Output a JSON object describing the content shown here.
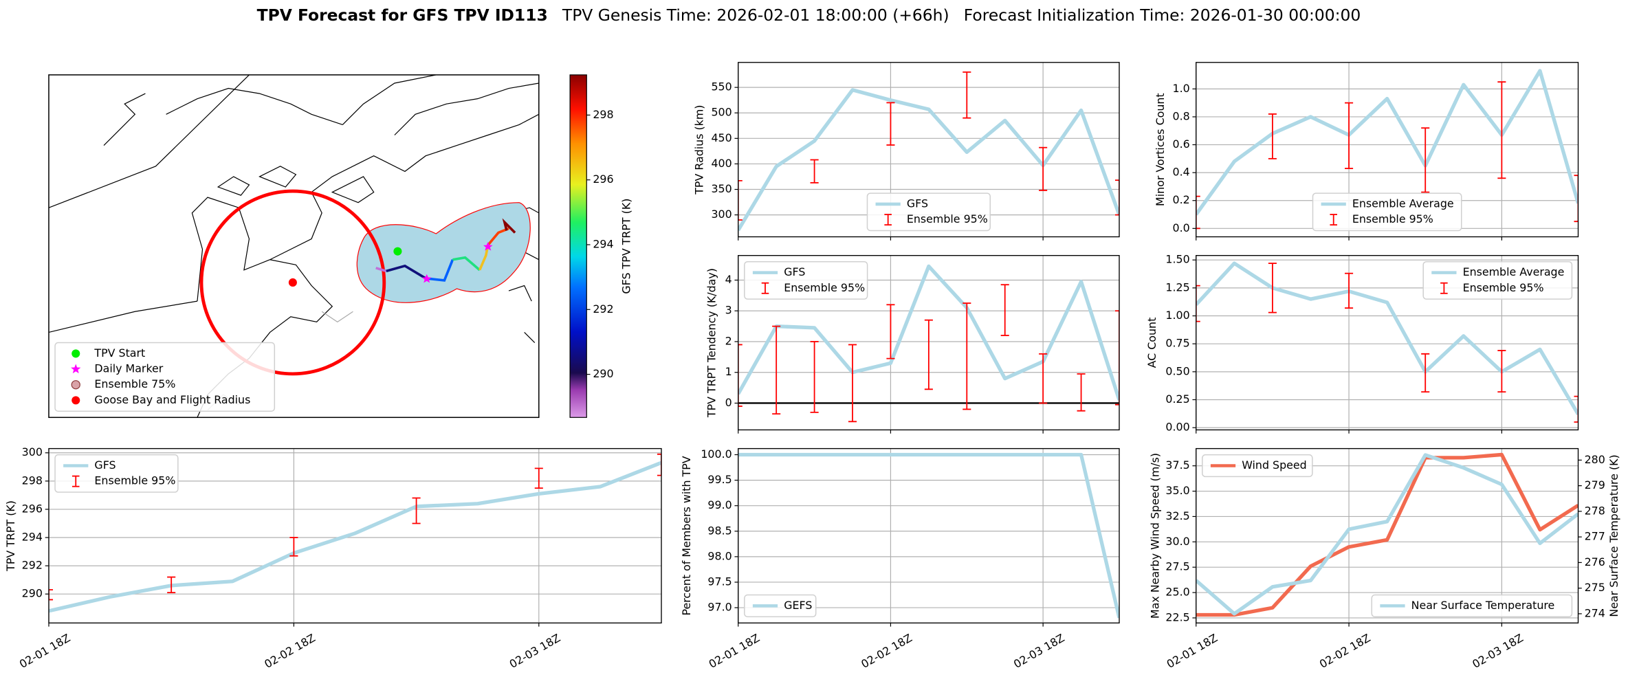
{
  "figure": {
    "title": "TPV Forecast for GFS TPV ID113",
    "genesis": "TPV Genesis Time: 2026-02-01 18:00:00 (+66h)",
    "init": "Forecast Initialization Time: 2026-01-30 00:00:00"
  },
  "chart_data": [
    {
      "type": "map",
      "legend": "lower left",
      "series": [
        {
          "name": "TPV Start",
          "color": "#00ee00",
          "marker": "circle"
        },
        {
          "name": "Daily Marker",
          "color": "#ff00ff",
          "marker": "star"
        },
        {
          "name": "Ensemble 75%",
          "color": "#d9a3a8",
          "marker": "circle"
        },
        {
          "name": "Goose Bay and Flight Radius",
          "color": "#ff0000",
          "marker": "circle"
        }
      ],
      "colorbar": {
        "label": "GFS TPV TRPT (K)",
        "lim": [
          288.67,
          299.24
        ],
        "ticks": [
          290,
          292,
          294,
          296,
          298
        ]
      }
    },
    {
      "type": "line",
      "ylabel": "TPV Radius (km)",
      "sharex": 6,
      "ylim": [
        257,
        599
      ],
      "yticks": [
        300,
        350,
        400,
        450,
        500,
        550
      ],
      "grid": true,
      "legend": "lower center",
      "series": [
        {
          "name": "GFS",
          "color": "#add8e6",
          "values": [
            270,
            395,
            445,
            545,
            525,
            507,
            423,
            485,
            397,
            505,
            300
          ]
        },
        {
          "name": "Ensemble 95%",
          "color": "#ff0000",
          "lower": [
            290,
            null,
            363,
            null,
            437,
            null,
            490,
            null,
            348,
            null,
            300
          ],
          "upper": [
            367,
            null,
            408,
            null,
            520,
            null,
            580,
            null,
            432,
            null,
            368
          ]
        }
      ]
    },
    {
      "type": "line",
      "ylabel": "Minor Vortices Count",
      "sharex": 7,
      "ylim": [
        -0.06,
        1.19
      ],
      "yticks": [
        {
          "value": 0,
          "label": "0.0"
        },
        0.2,
        0.4,
        0.6,
        0.8,
        {
          "value": 1,
          "label": "1.0"
        }
      ],
      "grid": true,
      "legend": "lower center",
      "series": [
        {
          "name": "Ensemble Average",
          "color": "#add8e6",
          "values": [
            0.1,
            0.48,
            0.68,
            0.8,
            0.67,
            0.93,
            0.45,
            1.03,
            0.67,
            1.13,
            0.18
          ]
        },
        {
          "name": "Ensemble 95%",
          "color": "#ff0000",
          "lower": [
            0,
            null,
            0.5,
            null,
            0.43,
            null,
            0.26,
            null,
            0.36,
            null,
            0.05
          ],
          "upper": [
            0.23,
            null,
            0.82,
            null,
            0.9,
            null,
            0.72,
            null,
            1.05,
            null,
            0.38
          ]
        }
      ]
    },
    {
      "type": "line",
      "ylabel": "TPV TRPT Tendency (K/day)",
      "sharex": 6,
      "ylim": [
        -0.87,
        4.8
      ],
      "yticks": [
        0,
        1,
        2,
        3,
        4
      ],
      "grid": true,
      "legend": "upper left",
      "hline": 0,
      "series": [
        {
          "name": "GFS",
          "color": "#add8e6",
          "values": [
            0.3,
            2.5,
            2.45,
            1.0,
            1.3,
            4.45,
            3.1,
            0.8,
            1.35,
            3.95,
            0.1
          ]
        },
        {
          "name": "Ensemble 95%",
          "color": "#ff0000",
          "lower": [
            -0.1,
            -0.35,
            -0.3,
            -0.6,
            1.45,
            0.45,
            -0.2,
            2.2,
            0,
            -0.25,
            -0.05
          ],
          "upper": [
            1.9,
            2.5,
            2.0,
            1.9,
            3.2,
            2.7,
            3.25,
            3.85,
            1.6,
            0.95,
            3.0
          ]
        }
      ]
    },
    {
      "type": "line",
      "ylabel": "AC Count",
      "sharex": 7,
      "ylim": [
        -0.02,
        1.54
      ],
      "yticks": [
        {
          "value": 0,
          "label": "0.00"
        },
        {
          "value": 0.25,
          "label": "0.25"
        },
        {
          "value": 0.5,
          "label": "0.50"
        },
        {
          "value": 0.75,
          "label": "0.75"
        },
        {
          "value": 1,
          "label": "1.00"
        },
        {
          "value": 1.25,
          "label": "1.25"
        },
        {
          "value": 1.5,
          "label": "1.50"
        }
      ],
      "grid": true,
      "legend": "upper right",
      "series": [
        {
          "name": "Ensemble Average",
          "color": "#add8e6",
          "values": [
            1.1,
            1.47,
            1.25,
            1.15,
            1.22,
            1.12,
            0.5,
            0.82,
            0.5,
            0.7,
            0.12
          ]
        },
        {
          "name": "Ensemble 95%",
          "color": "#ff0000",
          "lower": [
            0.95,
            null,
            1.03,
            null,
            1.07,
            null,
            0.32,
            null,
            0.32,
            null,
            0.05
          ],
          "upper": [
            1.27,
            null,
            1.47,
            null,
            1.38,
            null,
            0.66,
            null,
            0.69,
            null,
            0.28
          ]
        }
      ]
    },
    {
      "type": "line",
      "ylabel": "TPV TRPT (K)",
      "x": [
        "02-01 18Z",
        "02-02 00Z",
        "02-02 06Z",
        "02-02 12Z",
        "02-02 18Z",
        "02-03 00Z",
        "02-03 06Z",
        "02-03 12Z",
        "02-03 18Z",
        "02-04 00Z",
        "02-04 06Z"
      ],
      "xticks": [
        "02-01 18Z",
        "02-02 18Z",
        "02-03 18Z"
      ],
      "ylim": [
        287.95,
        300.3
      ],
      "yticks": [
        290,
        292,
        294,
        296,
        298,
        300
      ],
      "grid": true,
      "legend": "upper left",
      "series": [
        {
          "name": "GFS",
          "color": "#add8e6",
          "values": [
            288.8,
            289.8,
            290.6,
            290.9,
            292.9,
            294.3,
            296.2,
            296.4,
            297.1,
            297.6,
            299.3
          ]
        },
        {
          "name": "Ensemble 95%",
          "color": "#ff0000",
          "lower": [
            289.6,
            null,
            290.1,
            null,
            292.7,
            null,
            295.0,
            null,
            297.5,
            null,
            298.4
          ],
          "upper": [
            290.3,
            null,
            291.2,
            null,
            294.0,
            null,
            296.8,
            null,
            298.9,
            null,
            299.9
          ]
        }
      ]
    },
    {
      "type": "line",
      "ylabel": "Percent of Members with TPV",
      "x": [
        "02-01 18Z",
        "02-02 00Z",
        "02-02 06Z",
        "02-02 12Z",
        "02-02 18Z",
        "02-03 00Z",
        "02-03 06Z",
        "02-03 12Z",
        "02-03 18Z",
        "02-04 00Z",
        "02-04 06Z"
      ],
      "xticks": [
        "02-01 18Z",
        "02-02 18Z",
        "02-03 18Z"
      ],
      "ylim": [
        96.7,
        100.12
      ],
      "yticks": [
        {
          "value": 97,
          "label": "97.0"
        },
        97.5,
        {
          "value": 98,
          "label": "98.0"
        },
        98.5,
        {
          "value": 99,
          "label": "99.0"
        },
        99.5,
        {
          "value": 100,
          "label": "100.0"
        }
      ],
      "grid": true,
      "legend": "lower left",
      "series": [
        {
          "name": "GEFS",
          "color": "#add8e6",
          "values": [
            100,
            100,
            100,
            100,
            100,
            100,
            100,
            100,
            100,
            100,
            96.8
          ]
        }
      ]
    },
    {
      "type": "line",
      "ylabel": "Max Nearby Wind Speed (m/s)",
      "ylabel_color": "#f26a4f",
      "y2label": "Near Surface Temperature (K)",
      "y2label_color": "#4169e1",
      "x": [
        "02-01 18Z",
        "02-02 00Z",
        "02-02 06Z",
        "02-02 12Z",
        "02-02 18Z",
        "02-03 00Z",
        "02-03 06Z",
        "02-03 12Z",
        "02-03 18Z",
        "02-04 00Z",
        "02-04 06Z"
      ],
      "xticks": [
        "02-01 18Z",
        "02-02 18Z",
        "02-03 18Z"
      ],
      "ylim": [
        22.0,
        39.2
      ],
      "yticks": [
        22.5,
        {
          "value": 25,
          "label": "25.0"
        },
        27.5,
        {
          "value": 30,
          "label": "30.0"
        },
        32.5,
        {
          "value": 35,
          "label": "35.0"
        },
        37.5
      ],
      "y2lim": [
        273.64,
        280.45
      ],
      "y2ticks": [
        274,
        275,
        276,
        277,
        278,
        279,
        280
      ],
      "grid": true,
      "legend": "upper left",
      "legend2": "lower right",
      "series": [
        {
          "name": "Wind Speed",
          "color": "#f26a4f",
          "values": [
            22.8,
            22.8,
            23.5,
            27.6,
            29.5,
            30.2,
            38.3,
            38.3,
            38.6,
            31.2,
            33.6
          ]
        },
        {
          "name": "Near Surface Temperature",
          "color": "#add8e6",
          "axis": "y2",
          "values": [
            275.3,
            274.0,
            275.05,
            275.3,
            277.3,
            277.6,
            280.2,
            279.7,
            279.05,
            276.75,
            277.9
          ]
        }
      ]
    }
  ]
}
